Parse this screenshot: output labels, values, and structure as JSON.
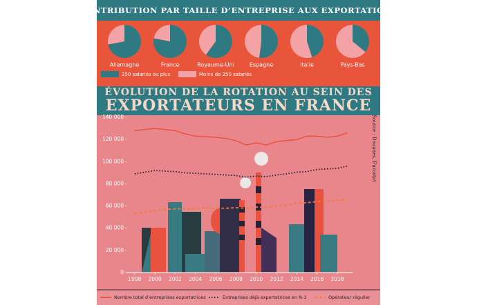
{
  "chart_data": [
    {
      "type": "pie",
      "title": "CONTRIBUTION PAR TAILLE D’ENTREPRISE AUX EXPORTATIONS",
      "categories": [
        "Allemagne",
        "France",
        "Royaume-Uni",
        "Espagne",
        "Italie",
        "Pays-Bas"
      ],
      "series": [
        {
          "name": "250 salariés ou plus",
          "color": "#2f7a82",
          "values": [
            72,
            78,
            60,
            52,
            45,
            36
          ]
        },
        {
          "name": "Moins de 250 salariés",
          "color": "#f3a2a6",
          "values": [
            28,
            22,
            40,
            48,
            55,
            64
          ]
        }
      ]
    },
    {
      "type": "line",
      "title": [
        "ÉVOLUTION DE LA ROTATION AU SEIN DES",
        "EXPORTATEURS EN FRANCE"
      ],
      "source": "Source : Douanes, Eurostat",
      "x": [
        1998,
        1999,
        2000,
        2001,
        2002,
        2003,
        2004,
        2005,
        2006,
        2007,
        2008,
        2009,
        2010,
        2011,
        2012,
        2013,
        2014,
        2015,
        2016,
        2017,
        2018,
        2019
      ],
      "xlim": [
        1997.2,
        2019.5
      ],
      "xticks": [
        1998,
        2000,
        2002,
        2004,
        2006,
        2008,
        2010,
        2012,
        2014,
        2016,
        2018
      ],
      "ylim": [
        0,
        140000
      ],
      "yticks": [
        0,
        {
          "value": 20000,
          "label": "20 000"
        },
        {
          "value": 40000,
          "label": "40 000"
        },
        {
          "value": 60000,
          "label": "60 000"
        },
        {
          "value": 80000,
          "label": "80 000"
        },
        {
          "value": 100000,
          "label": "100 000"
        },
        {
          "value": 120000,
          "label": "120 000"
        },
        {
          "value": 140000,
          "label": "140 000"
        }
      ],
      "grid": false,
      "series": [
        {
          "name": "Nombre total d’entreprises exportatrices",
          "color": "#e8503a",
          "style": "solid",
          "values": [
            128000,
            129000,
            130000,
            129000,
            128000,
            125000,
            123000,
            122500,
            122000,
            121000,
            119000,
            115000,
            117000,
            115000,
            118000,
            119000,
            120000,
            123000,
            123000,
            122000,
            123000,
            126000
          ]
        },
        {
          "name": "Entreprises déjà exportatrices en N-1",
          "color": "#1f1f2e",
          "style": "dotted",
          "values": [
            89000,
            90500,
            92000,
            91500,
            91000,
            90000,
            89500,
            89000,
            88500,
            88000,
            87500,
            86000,
            87000,
            86500,
            88000,
            89000,
            90500,
            91000,
            93000,
            93500,
            94000,
            96000
          ]
        },
        {
          "name": "Opérateur régulier",
          "color": "#f07a40",
          "style": "dashed",
          "values": [
            53000,
            54500,
            56000,
            57000,
            57500,
            57500,
            58000,
            58500,
            58000,
            58000,
            58500,
            58000,
            59000,
            59000,
            60000,
            61000,
            62500,
            63000,
            64000,
            64500,
            65000,
            66000
          ]
        }
      ]
    }
  ]
}
